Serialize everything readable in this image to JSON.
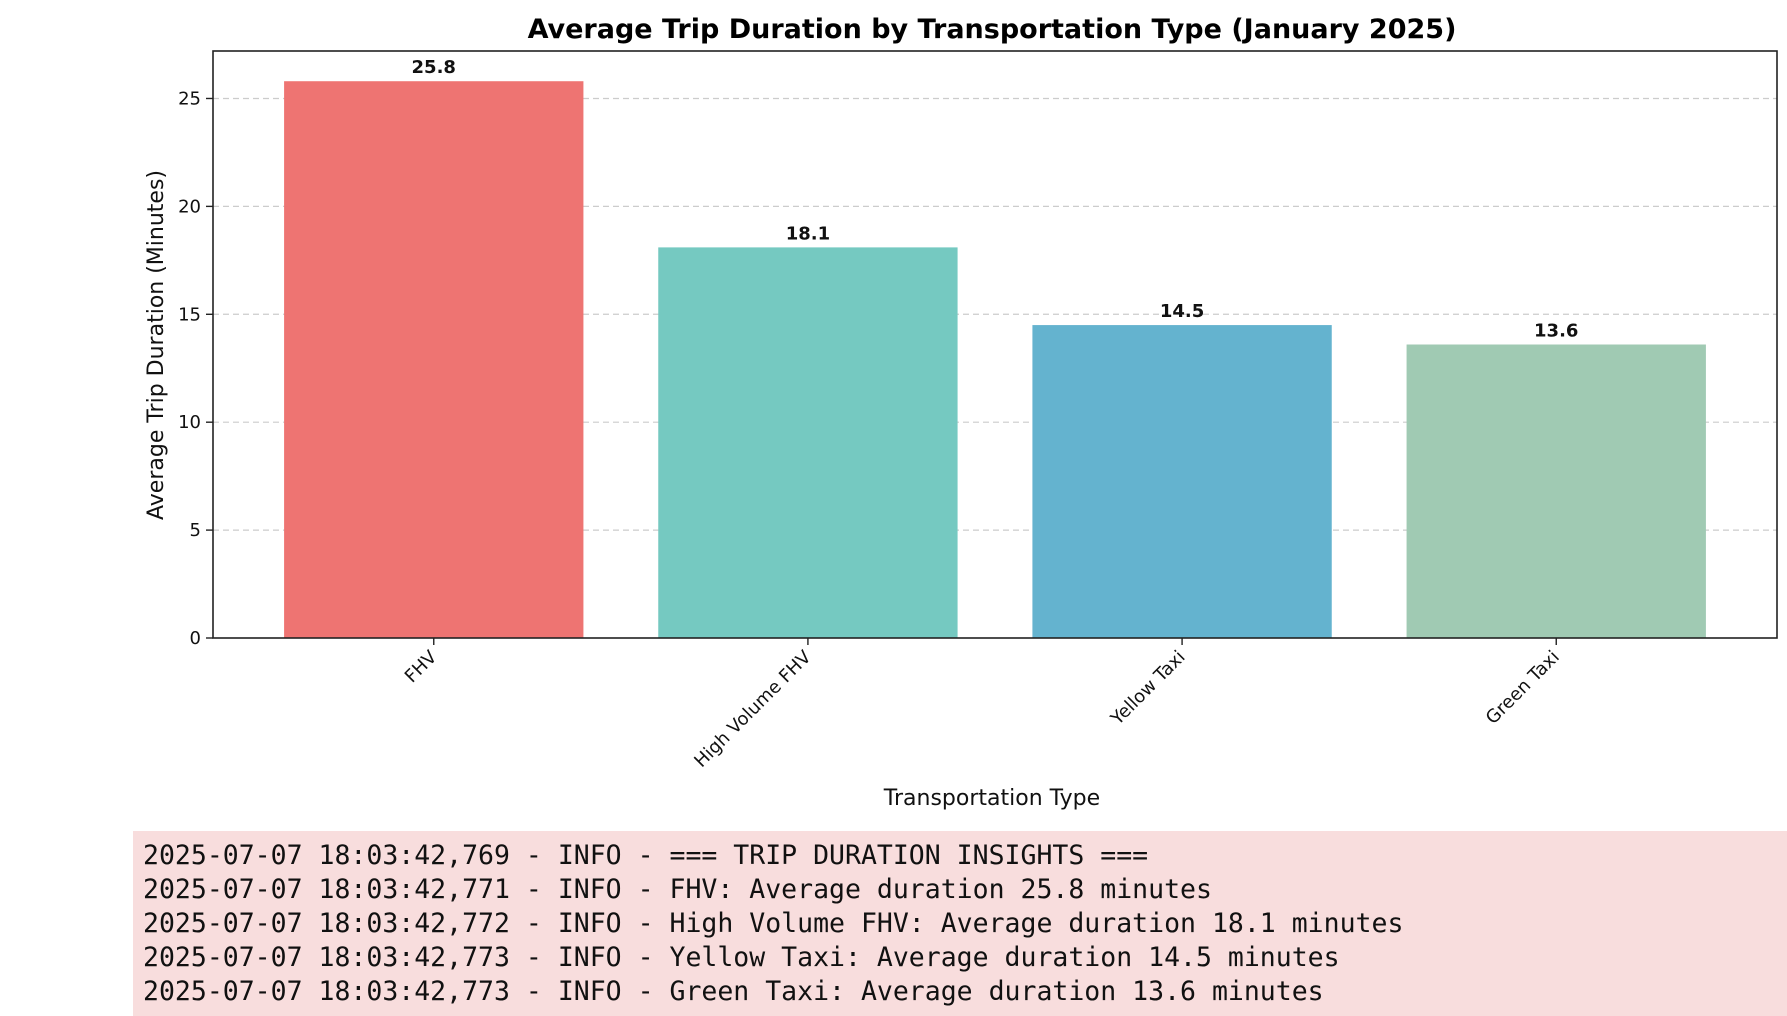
{
  "chart_data": {
    "type": "bar",
    "title": "Average Trip Duration by Transportation Type (January 2025)",
    "xlabel": "Transportation Type",
    "ylabel": "Average Trip Duration (Minutes)",
    "categories": [
      "FHV",
      "High Volume FHV",
      "Yellow Taxi",
      "Green Taxi"
    ],
    "values": [
      25.8,
      18.1,
      14.5,
      13.6
    ],
    "value_labels": [
      "25.8",
      "18.1",
      "14.5",
      "13.6"
    ],
    "colors": [
      "#ee7472",
      "#75c9c1",
      "#64b3cf",
      "#a0cab3"
    ],
    "ylim": [
      0,
      27.2
    ],
    "yticks": [
      0,
      5,
      10,
      15,
      20,
      25
    ],
    "grid": "y-dashed",
    "legend": "none"
  },
  "console_log": {
    "lines": [
      "2025-07-07 18:03:42,769 - INFO - === TRIP DURATION INSIGHTS ===",
      "2025-07-07 18:03:42,771 - INFO - FHV: Average duration 25.8 minutes",
      "2025-07-07 18:03:42,772 - INFO - High Volume FHV: Average duration 18.1 minutes",
      "2025-07-07 18:03:42,773 - INFO - Yellow Taxi: Average duration 14.5 minutes",
      "2025-07-07 18:03:42,773 - INFO - Green Taxi: Average duration 13.6 minutes"
    ]
  }
}
